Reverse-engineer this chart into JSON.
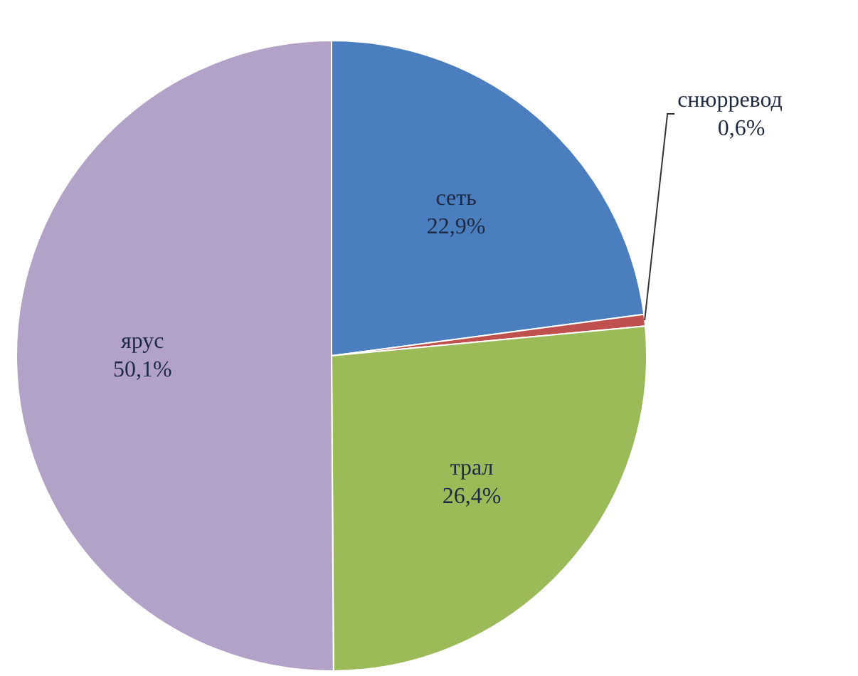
{
  "chart_data": {
    "type": "pie",
    "categories": [
      "сеть",
      "снюрревод",
      "трал",
      "ярус"
    ],
    "values": [
      22.9,
      0.6,
      26.4,
      50.1
    ],
    "colors": [
      "#4a7ebf",
      "#c0504d",
      "#9bbb59",
      "#b3a2c7"
    ],
    "value_labels": [
      "22,9%",
      "0,6%",
      "26,4%",
      "50,1%"
    ],
    "legend": false
  }
}
